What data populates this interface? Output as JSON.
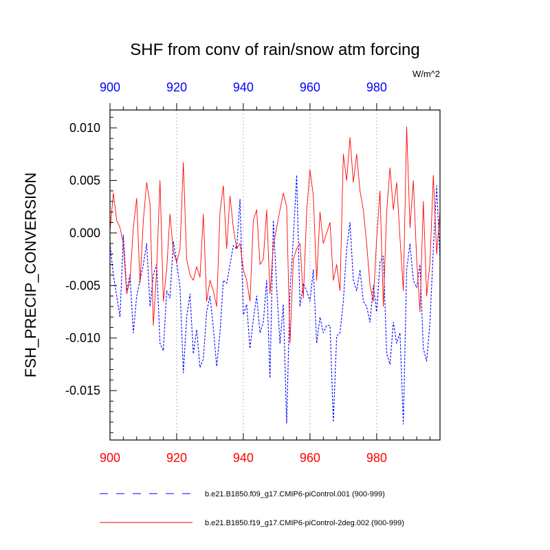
{
  "chart_data": {
    "type": "line",
    "title": "SHF from conv of rain/snow atm forcing",
    "units": "W/m^2",
    "ylabel": "FSH_PRECIP_CONVERSION",
    "xlim": [
      900,
      999
    ],
    "ylim": [
      -0.0197,
      0.0117
    ],
    "x_ticks": [
      900,
      920,
      940,
      960,
      980
    ],
    "x_tick_labels": [
      "900",
      "920",
      "940",
      "960",
      "980"
    ],
    "y_ticks": [
      0.01,
      0.005,
      0.0,
      -0.005,
      -0.01,
      -0.015
    ],
    "y_tick_labels": [
      "0.010",
      "0.005",
      "0.000",
      "-0.005",
      "-0.010",
      "-0.015"
    ],
    "top_axis_color": "#0000ff",
    "bottom_axis_color": "#ff0000",
    "x_start": 900,
    "series": [
      {
        "name": "b.e21.B1850.f09_g17.CMIP6-piControl.001 (900-999)",
        "color": "#0000ff",
        "dash": "dashed",
        "values": [
          -0.001,
          -0.004,
          -0.006,
          -0.008,
          -0.0002,
          -0.0055,
          -0.004,
          -0.0095,
          -0.006,
          -0.0045,
          -0.003,
          -0.001,
          -0.007,
          -0.004,
          -0.003,
          -0.0105,
          -0.0112,
          -0.0055,
          -0.0062,
          -0.0008,
          -0.0028,
          -0.0052,
          -0.0133,
          -0.008,
          -0.0058,
          -0.0115,
          -0.0092,
          -0.0128,
          -0.012,
          -0.0075,
          -0.006,
          -0.009,
          -0.0127,
          -0.0095,
          -0.0045,
          -0.0048,
          -0.003,
          -0.0012,
          -0.0015,
          0.0032,
          -0.0078,
          -0.0068,
          -0.011,
          -0.0082,
          -0.006,
          -0.0095,
          -0.0085,
          -0.0045,
          -0.0138,
          0.0012,
          -0.0052,
          -0.0105,
          -0.0068,
          -0.0181,
          -0.0055,
          -0.0005,
          0.0055,
          -0.007,
          -0.0048,
          -0.0055,
          -0.0065,
          -0.0035,
          -0.0105,
          -0.008,
          -0.0095,
          -0.0088,
          -0.0088,
          -0.018,
          -0.0098,
          -0.0095,
          -0.0065,
          -0.0015,
          0.001,
          -0.0045,
          -0.0055,
          -0.0035,
          -0.0065,
          -0.007,
          -0.0085,
          -0.005,
          -0.0075,
          -0.0028,
          -0.0022,
          -0.0115,
          -0.0125,
          -0.0085,
          -0.0105,
          -0.0095,
          -0.0182,
          -0.0035,
          -0.001,
          -0.0045,
          -0.0052,
          -0.003,
          -0.011,
          -0.0122,
          -0.0085,
          -0.0015,
          0.0045,
          -0.0025
        ]
      },
      {
        "name": "b.e21.B1850.f19_g17.CMIP6-piControl-2deg.002 (900-999)",
        "color": "#ff0000",
        "dash": "solid",
        "values": [
          0.0002,
          0.0038,
          0.0012,
          0.0005,
          -0.001,
          -0.0058,
          -0.0045,
          0.0005,
          0.0033,
          -0.0048,
          0.0012,
          0.0048,
          0.0028,
          -0.0088,
          -0.0035,
          0.005,
          -0.0065,
          -0.0035,
          0.0018,
          -0.0018,
          -0.0028,
          -0.0015,
          0.0067,
          -0.0025,
          -0.004,
          -0.0045,
          -0.0032,
          -0.0042,
          0.0018,
          -0.0065,
          -0.0045,
          -0.0055,
          -0.007,
          0.002,
          0.0045,
          -0.0015,
          0.0035,
          0.0005,
          -0.0015,
          -0.001,
          -0.0035,
          -0.0045,
          -0.0065,
          0.0012,
          0.0022,
          -0.003,
          -0.0025,
          0.0022,
          -0.0058,
          -0.0012,
          0.0005,
          0.0022,
          0.0038,
          0.0025,
          -0.0105,
          -0.0025,
          -0.0015,
          -0.001,
          -0.0062,
          0.002,
          0.006,
          0.0035,
          -0.0045,
          0.002,
          -0.001,
          0.0,
          0.001,
          -0.0045,
          -0.003,
          -0.0055,
          0.0075,
          0.005,
          0.0091,
          0.0048,
          0.0075,
          0.004,
          0.0022,
          -0.001,
          -0.005,
          -0.0065,
          -0.0005,
          0.004,
          -0.007,
          0.002,
          0.0062,
          0.0022,
          0.0048,
          -0.0005,
          -0.0055,
          0.0101,
          0.0005,
          0.005,
          -0.0025,
          -0.0075,
          0.003,
          -0.006,
          -0.0028,
          0.0055,
          -0.002,
          0.002
        ]
      }
    ]
  }
}
